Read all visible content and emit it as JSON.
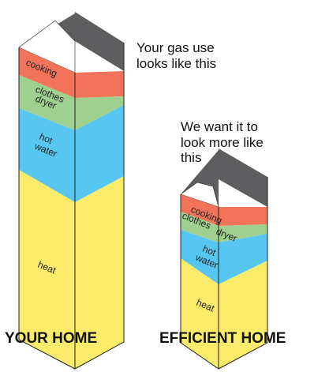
{
  "your_home": {
    "label": "YOUR HOME",
    "caption_line1": "Your gas use",
    "caption_line2": "looks like this",
    "bands": {
      "cooking": "cooking",
      "clothes": "clothes",
      "dryer": "dryer",
      "hot": "hot",
      "water": "water",
      "heat": "heat"
    }
  },
  "efficient_home": {
    "label": "EFFICIENT HOME",
    "caption_line1": "We want it to",
    "caption_line2": "look more like",
    "caption_line3": "this",
    "bands": {
      "cooking": "cooking",
      "clothes": "clothes",
      "dryer": "dryer",
      "hot": "hot",
      "water": "water",
      "heat": "heat"
    }
  },
  "colors": {
    "cooking": "#F0735A",
    "clothes_dryer": "#9FD08F",
    "hot_water": "#57C7F2",
    "heat": "#FAEB6A",
    "roof_dark": "#5E5E60",
    "roof_light": "#FFFFFF",
    "outline": "#231F20"
  }
}
